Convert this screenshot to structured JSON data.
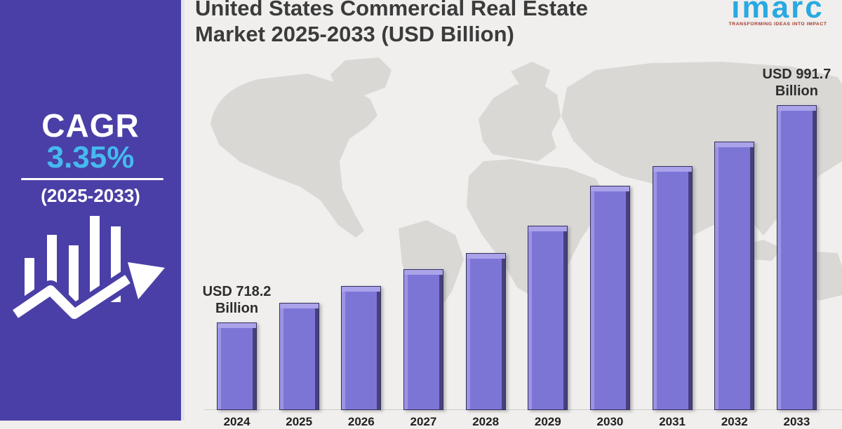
{
  "title": {
    "line1": "United States Commercial Real Estate",
    "line2": "Market 2025-2033 (USD Billion)"
  },
  "branding": {
    "logo_text": "imarc",
    "tagline": "TRANSFORMING IDEAS INTO IMPACT",
    "logo_color": "#29a9e1",
    "tagline_color": "#a6382e"
  },
  "sidebar": {
    "cagr_label": "CAGR",
    "cagr_value": "3.35%",
    "period": "(2025-2033)",
    "bg_color": "#4a3fa6",
    "value_color": "#45b9f0"
  },
  "chart_data": {
    "type": "bar",
    "title": "United States Commercial Real Estate Market 2025-2033 (USD Billion)",
    "unit": "USD Billion",
    "categories": [
      "2024",
      "2025",
      "2026",
      "2027",
      "2028",
      "2029",
      "2030",
      "2031",
      "2032",
      "2033"
    ],
    "values": [
      718.2,
      743,
      764,
      785,
      806,
      840,
      890,
      915,
      946,
      991.7
    ],
    "labeled_values": {
      "2024": 718.2,
      "2033": 991.7
    },
    "annotations": [
      {
        "index": 0,
        "text_line1": "USD 718.2",
        "text_line2": "Billion"
      },
      {
        "index": 9,
        "text_line1": "USD 991.7",
        "text_line2": "Billion"
      }
    ],
    "xlabel": "",
    "ylabel": "",
    "ylim": [
      608,
      1045
    ],
    "grid": false,
    "legend": null,
    "bar_color": "#7d75d6",
    "bar_top_color": "#aaa3ea",
    "bar_left_color": "#9c94e2",
    "bar_side_color": "#46407d",
    "background_color": "#f0efed",
    "map_color": "#d9d8d5"
  }
}
